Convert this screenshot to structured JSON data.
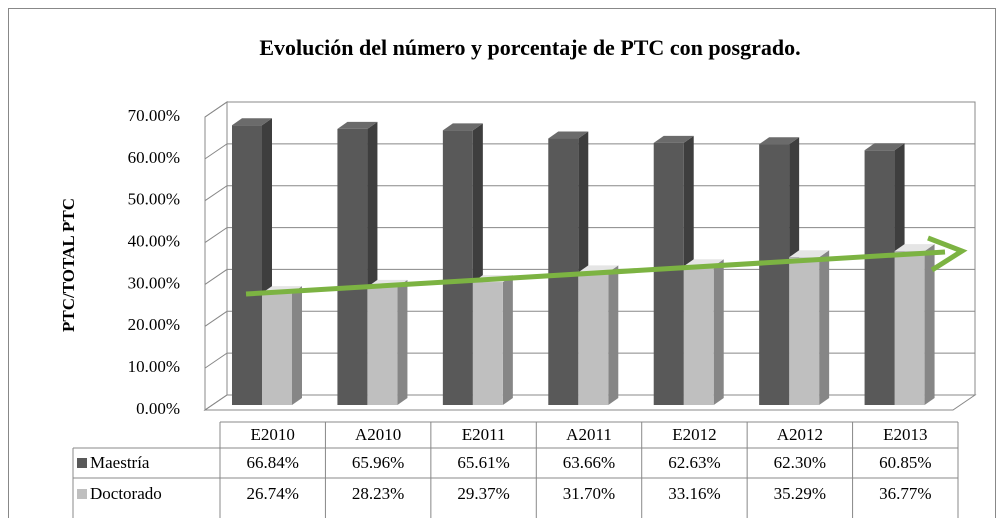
{
  "chart_data": {
    "type": "bar3d",
    "title": "Evolución  del número y   porcentaje de PTC con posgrado.",
    "ylabel": "PTC/TOTAL PTC",
    "categories": [
      "E2010",
      "A2010",
      "E2011",
      "A2011",
      "E2012",
      "A2012",
      "E2013"
    ],
    "series": [
      {
        "name": "Maestría",
        "color": "#595959",
        "values": [
          66.84,
          65.96,
          65.61,
          63.66,
          62.63,
          62.3,
          60.85
        ],
        "value_labels": [
          "66.84%",
          "65.96%",
          "65.61%",
          "63.66%",
          "62.63%",
          "62.30%",
          "60.85%"
        ]
      },
      {
        "name": "Doctorado",
        "color": "#bfbfbf",
        "values": [
          26.74,
          28.23,
          29.37,
          31.7,
          33.16,
          35.29,
          36.77
        ],
        "value_labels": [
          "26.74%",
          "28.23%",
          "29.37%",
          "31.70%",
          "33.16%",
          "35.29%",
          "36.77%"
        ]
      }
    ],
    "ylim": [
      0,
      70
    ],
    "yticks": [
      {
        "value": 0,
        "label": "0.00%"
      },
      {
        "value": 10,
        "label": "10.00%"
      },
      {
        "value": 20,
        "label": "20.00%"
      },
      {
        "value": 30,
        "label": "30.00%"
      },
      {
        "value": 40,
        "label": "40.00%"
      },
      {
        "value": 50,
        "label": "50.00%"
      },
      {
        "value": 60,
        "label": "60.00%"
      },
      {
        "value": 70,
        "label": "70.00%"
      }
    ],
    "grid": true
  }
}
